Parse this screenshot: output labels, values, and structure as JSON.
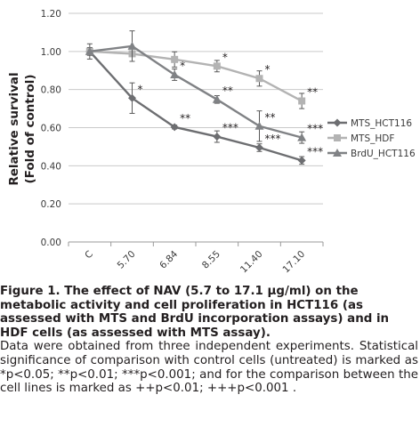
{
  "chart_data": {
    "type": "line",
    "ylabel_line1": "Relative survival",
    "ylabel_line2": "(Fold of control)",
    "categories": [
      "C",
      "5.70",
      "6.84",
      "8.55",
      "11.40",
      "17.10"
    ],
    "ylim": [
      0,
      1.2
    ],
    "yticks": [
      "0.00",
      "0.20",
      "0.40",
      "0.60",
      "0.80",
      "1.00",
      "1.20"
    ],
    "grid": true,
    "legend_position": "right",
    "series": [
      {
        "name": "MTS_HCT116",
        "marker": "diamond",
        "color": "#6d6e71",
        "values": [
          1.0,
          0.755,
          0.603,
          0.553,
          0.495,
          0.428
        ],
        "errors": [
          0.02,
          0.08,
          0.01,
          0.03,
          0.02,
          0.02
        ],
        "labels": [
          "",
          "*",
          "**",
          "***",
          "***",
          "***"
        ]
      },
      {
        "name": "MTS_HDF",
        "marker": "square",
        "color": "#b3b3b3",
        "values": [
          1.0,
          0.988,
          0.958,
          0.923,
          0.858,
          0.74
        ],
        "errors": [
          0.02,
          0.01,
          0.04,
          0.03,
          0.04,
          0.04
        ],
        "labels": [
          "",
          "",
          "",
          "*",
          "*",
          "**"
        ]
      },
      {
        "name": "BrdU_HCT116",
        "marker": "triangle",
        "color": "#808285",
        "values": [
          1.0,
          1.028,
          0.878,
          0.748,
          0.608,
          0.548
        ],
        "errors": [
          0.04,
          0.08,
          0.03,
          0.02,
          0.08,
          0.03
        ],
        "labels": [
          "",
          "",
          "*",
          "**",
          "**",
          "***"
        ]
      }
    ]
  },
  "caption": {
    "title": "Figure 1. The effect of NAV (5.7 to 17.1 µg/ml) on the metabolic activity and cell proliferation in HCT116 (as assessed with MTS and BrdU incorporation assays) and in HDF cells (as assessed with MTS assay).",
    "body": "Data were obtained from three independent experiments. Statistical significance of comparison with control cells (untreated) is marked as *p<0.05; **p<0.01; ***p<0.001; and for the comparison between the cell lines is marked as ++p<0.01; +++p<0.001 ."
  }
}
